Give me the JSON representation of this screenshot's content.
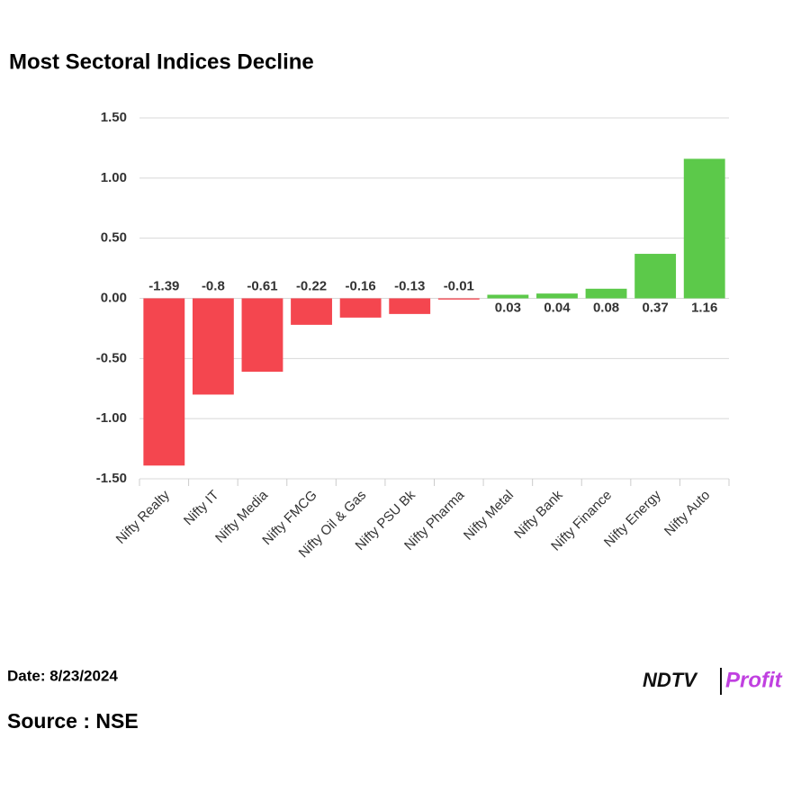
{
  "chart_data": {
    "type": "bar",
    "title": "Most Sectoral Indices Decline",
    "categories": [
      "Nifty Realty",
      "Nifty IT",
      "Nifty Media",
      "Nifty FMCG",
      "Nifty Oil & Gas",
      "Nifty PSU Bk",
      "Nifty Pharma",
      "Nifty Metal",
      "Nifty Bank",
      "Nifty Finance",
      "Nifty Energy",
      "Nifty Auto"
    ],
    "values": [
      -1.39,
      -0.8,
      -0.61,
      -0.22,
      -0.16,
      -0.13,
      -0.01,
      0.03,
      0.04,
      0.08,
      0.37,
      1.16
    ],
    "positive_color": "#5cc94a",
    "negative_color": "#f4464f",
    "ylim": [
      -1.5,
      1.5
    ],
    "yticks": [
      {
        "value": -1.5,
        "label": "-1.50"
      },
      {
        "value": -1,
        "label": "-1.00"
      },
      {
        "value": -0.5,
        "label": "-0.50"
      },
      {
        "value": 0,
        "label": "0.00"
      },
      {
        "value": 0.5,
        "label": "0.50"
      },
      {
        "value": 1,
        "label": "1.00"
      },
      {
        "value": 1.5,
        "label": "1.50"
      }
    ],
    "grid": true
  },
  "footer": {
    "date": "Date: 8/23/2024",
    "source": "Source : NSE",
    "logo_left": "NDTV",
    "logo_right": "Profit"
  }
}
